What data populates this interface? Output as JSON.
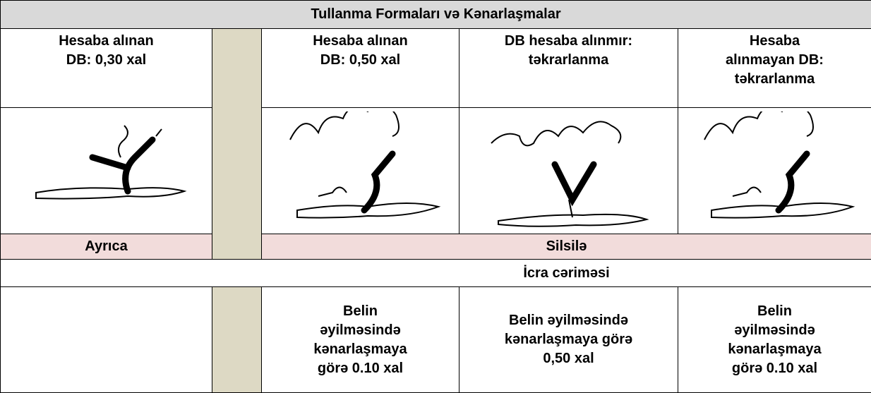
{
  "table": {
    "title": "Tullanma Formaları və Kənarlaşmalar",
    "headers": [
      [
        "Hesaba alınan",
        "DB: 0,30 xal"
      ],
      [
        "Hesaba alınan",
        "DB: 0,50 xal"
      ],
      [
        "DB hesaba alınmır:",
        "təkrarlanma"
      ],
      [
        "Hesaba",
        "alınmayan DB:",
        "təkrarlanma"
      ]
    ],
    "group_left": "Ayrıca",
    "group_right": "Silsilə",
    "section": "İcra cəriməsi",
    "penalties": [
      [
        "Belin",
        "əyilməsində",
        "kənarlaşmaya",
        "görə 0.10 xal"
      ],
      [
        "Belin əyilməsində",
        "kənarlaşmaya görə",
        "0,50 xal"
      ],
      [
        "Belin",
        "əyilməsində",
        "kənarlaşmaya",
        "görə 0.10 xal"
      ]
    ]
  }
}
